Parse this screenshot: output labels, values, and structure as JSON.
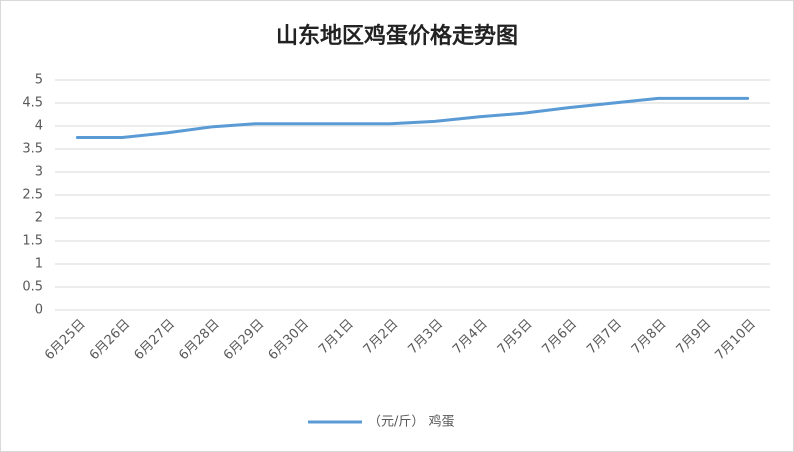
{
  "chart_data": {
    "type": "line",
    "title": "山东地区鸡蛋价格走势图",
    "categories": [
      "6月25日",
      "6月26日",
      "6月27日",
      "6月28日",
      "6月29日",
      "6月30日",
      "7月1日",
      "7月2日",
      "7月3日",
      "7月4日",
      "7月5日",
      "7月6日",
      "7月7日",
      "7月8日",
      "7月9日",
      "7月10日"
    ],
    "series": [
      {
        "name": "（元/斤） 鸡蛋",
        "color": "#5b9bd5",
        "values": [
          3.75,
          3.75,
          3.85,
          3.98,
          4.05,
          4.05,
          4.05,
          4.05,
          4.1,
          4.2,
          4.28,
          4.4,
          4.5,
          4.6,
          4.6,
          4.6
        ]
      }
    ],
    "ylim": [
      0,
      5
    ],
    "yticks": [
      0,
      0.5,
      1,
      1.5,
      2,
      2.5,
      3,
      3.5,
      4,
      4.5,
      5
    ],
    "grid": true,
    "legend": "bottom"
  }
}
